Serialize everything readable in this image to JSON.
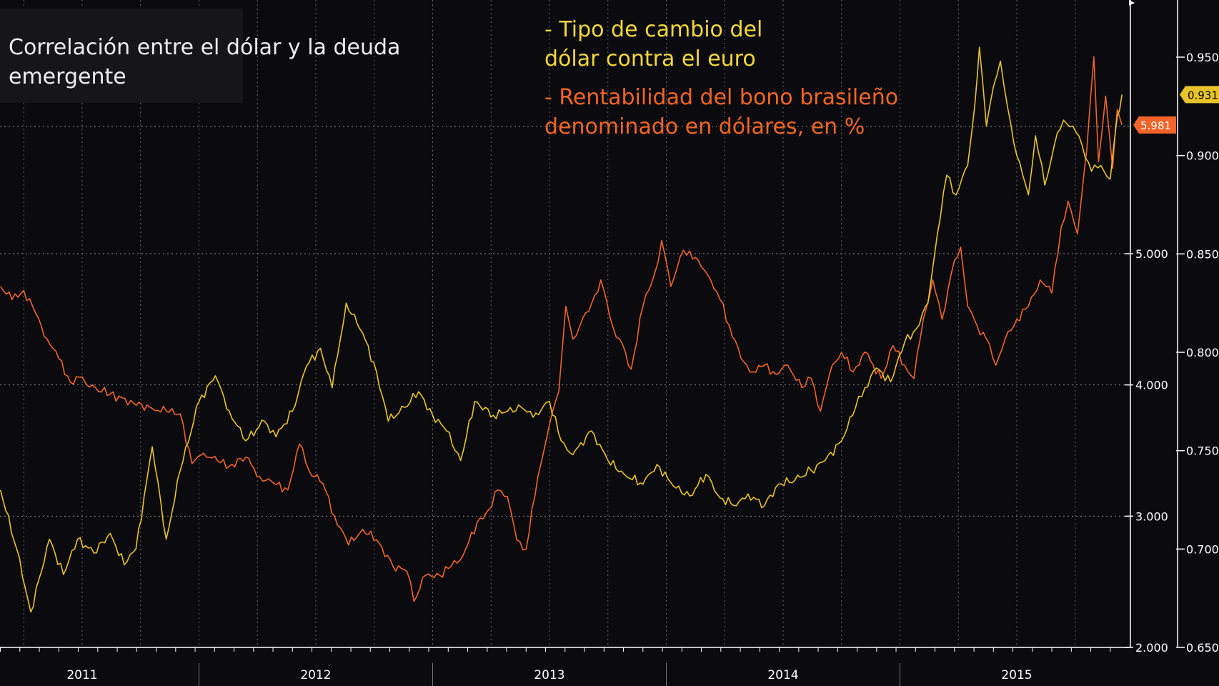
{
  "title": "Correlación entre el dólar y la deuda emergente",
  "legend": {
    "usd_line1": "- Tipo de cambio del",
    "usd_line2": "dólar contra el euro",
    "bond_line1": "- Rentabilidad del bono brasileño",
    "bond_line2": "denominado en dólares, en %"
  },
  "colors": {
    "background": "#0b0b0f",
    "usd": "#e8c42a",
    "bond": "#f2632a",
    "grid": "#8a8a8a",
    "text": "#ffffff"
  },
  "chart_data": {
    "type": "line",
    "title": "Correlación entre el dólar y la deuda emergente",
    "x_labels": [
      "2011",
      "2012",
      "2013",
      "2014",
      "2015"
    ],
    "x_range": [
      2010.65,
      2015.45
    ],
    "axes": {
      "eurusd": {
        "side": "outer-right",
        "ylim": [
          0.65,
          0.975
        ],
        "ticks": [
          "0.650",
          "0.700",
          "0.750",
          "0.800",
          "0.850",
          "0.900",
          "0.950"
        ]
      },
      "bond_yield": {
        "side": "inner-right",
        "ylim": [
          2.0,
          7.0
        ],
        "ticks": [
          "2.000",
          "3.000",
          "4.000",
          "5.000"
        ]
      }
    },
    "series": [
      {
        "name": "Tipo de cambio del dólar contra el euro",
        "axis": "eurusd",
        "last_value": "0.931",
        "points": [
          [
            2010.65,
            0.73
          ],
          [
            2010.72,
            0.7
          ],
          [
            2010.78,
            0.668
          ],
          [
            2010.86,
            0.705
          ],
          [
            2010.92,
            0.687
          ],
          [
            2010.98,
            0.705
          ],
          [
            2011.05,
            0.698
          ],
          [
            2011.12,
            0.708
          ],
          [
            2011.18,
            0.692
          ],
          [
            2011.23,
            0.7
          ],
          [
            2011.3,
            0.752
          ],
          [
            2011.36,
            0.705
          ],
          [
            2011.42,
            0.74
          ],
          [
            2011.5,
            0.775
          ],
          [
            2011.57,
            0.788
          ],
          [
            2011.63,
            0.77
          ],
          [
            2011.7,
            0.755
          ],
          [
            2011.78,
            0.765
          ],
          [
            2011.83,
            0.757
          ],
          [
            2011.9,
            0.77
          ],
          [
            2011.96,
            0.793
          ],
          [
            2012.02,
            0.802
          ],
          [
            2012.07,
            0.782
          ],
          [
            2012.13,
            0.825
          ],
          [
            2012.2,
            0.81
          ],
          [
            2012.26,
            0.79
          ],
          [
            2012.31,
            0.765
          ],
          [
            2012.38,
            0.772
          ],
          [
            2012.44,
            0.78
          ],
          [
            2012.5,
            0.768
          ],
          [
            2012.56,
            0.76
          ],
          [
            2012.62,
            0.745
          ],
          [
            2012.68,
            0.775
          ],
          [
            2012.76,
            0.768
          ],
          [
            2012.82,
            0.77
          ],
          [
            2012.88,
            0.772
          ],
          [
            2012.93,
            0.767
          ],
          [
            2013.0,
            0.775
          ],
          [
            2013.05,
            0.755
          ],
          [
            2013.1,
            0.748
          ],
          [
            2013.18,
            0.76
          ],
          [
            2013.25,
            0.745
          ],
          [
            2013.32,
            0.738
          ],
          [
            2013.4,
            0.733
          ],
          [
            2013.46,
            0.743
          ],
          [
            2013.53,
            0.732
          ],
          [
            2013.6,
            0.727
          ],
          [
            2013.67,
            0.738
          ],
          [
            2013.73,
            0.726
          ],
          [
            2013.8,
            0.722
          ],
          [
            2013.85,
            0.728
          ],
          [
            2013.92,
            0.722
          ],
          [
            2013.98,
            0.733
          ],
          [
            2014.05,
            0.735
          ],
          [
            2014.12,
            0.74
          ],
          [
            2014.18,
            0.745
          ],
          [
            2014.25,
            0.755
          ],
          [
            2014.31,
            0.772
          ],
          [
            2014.35,
            0.782
          ],
          [
            2014.4,
            0.792
          ],
          [
            2014.46,
            0.785
          ],
          [
            2014.52,
            0.805
          ],
          [
            2014.57,
            0.812
          ],
          [
            2014.62,
            0.825
          ],
          [
            2014.66,
            0.86
          ],
          [
            2014.7,
            0.89
          ],
          [
            2014.74,
            0.88
          ],
          [
            2014.79,
            0.895
          ],
          [
            2014.82,
            0.925
          ],
          [
            2014.84,
            0.955
          ],
          [
            2014.87,
            0.915
          ],
          [
            2014.9,
            0.935
          ],
          [
            2014.93,
            0.948
          ],
          [
            2014.96,
            0.925
          ],
          [
            2015.0,
            0.9
          ],
          [
            2015.05,
            0.88
          ],
          [
            2015.08,
            0.91
          ],
          [
            2015.12,
            0.885
          ],
          [
            2015.16,
            0.905
          ],
          [
            2015.2,
            0.918
          ],
          [
            2015.24,
            0.915
          ],
          [
            2015.28,
            0.905
          ],
          [
            2015.32,
            0.892
          ],
          [
            2015.36,
            0.895
          ],
          [
            2015.4,
            0.888
          ],
          [
            2015.43,
            0.92
          ],
          [
            2015.45,
            0.931
          ]
        ]
      },
      {
        "name": "Rentabilidad del bono brasileño denominado en dólares, en %",
        "axis": "bond_yield",
        "last_value": "5.981",
        "points": [
          [
            2010.65,
            4.75
          ],
          [
            2010.7,
            4.65
          ],
          [
            2010.75,
            4.72
          ],
          [
            2010.8,
            4.55
          ],
          [
            2010.85,
            4.35
          ],
          [
            2010.9,
            4.2
          ],
          [
            2010.95,
            4.02
          ],
          [
            2011.0,
            4.06
          ],
          [
            2011.02,
            4.0
          ],
          [
            2011.12,
            3.93
          ],
          [
            2011.22,
            3.86
          ],
          [
            2011.3,
            3.82
          ],
          [
            2011.36,
            3.8
          ],
          [
            2011.42,
            3.78
          ],
          [
            2011.47,
            3.4
          ],
          [
            2011.52,
            3.48
          ],
          [
            2011.58,
            3.42
          ],
          [
            2011.63,
            3.38
          ],
          [
            2011.7,
            3.45
          ],
          [
            2011.76,
            3.3
          ],
          [
            2011.82,
            3.25
          ],
          [
            2011.88,
            3.2
          ],
          [
            2011.93,
            3.55
          ],
          [
            2011.97,
            3.35
          ],
          [
            2012.03,
            3.25
          ],
          [
            2012.08,
            3.0
          ],
          [
            2012.14,
            2.78
          ],
          [
            2012.2,
            2.9
          ],
          [
            2012.26,
            2.82
          ],
          [
            2012.33,
            2.62
          ],
          [
            2012.39,
            2.58
          ],
          [
            2012.42,
            2.35
          ],
          [
            2012.47,
            2.55
          ],
          [
            2012.53,
            2.55
          ],
          [
            2012.58,
            2.62
          ],
          [
            2012.63,
            2.7
          ],
          [
            2012.69,
            2.95
          ],
          [
            2012.74,
            3.05
          ],
          [
            2012.78,
            3.2
          ],
          [
            2012.82,
            3.15
          ],
          [
            2012.86,
            2.82
          ],
          [
            2012.9,
            2.75
          ],
          [
            2012.95,
            3.3
          ],
          [
            2013.0,
            3.7
          ],
          [
            2013.04,
            3.95
          ],
          [
            2013.07,
            4.6
          ],
          [
            2013.1,
            4.35
          ],
          [
            2013.13,
            4.45
          ],
          [
            2013.18,
            4.62
          ],
          [
            2013.22,
            4.8
          ],
          [
            2013.27,
            4.45
          ],
          [
            2013.3,
            4.35
          ],
          [
            2013.35,
            4.12
          ],
          [
            2013.4,
            4.6
          ],
          [
            2013.45,
            4.85
          ],
          [
            2013.48,
            5.1
          ],
          [
            2013.52,
            4.75
          ],
          [
            2013.56,
            4.98
          ],
          [
            2013.6,
            5.02
          ],
          [
            2013.65,
            4.9
          ],
          [
            2013.69,
            4.8
          ],
          [
            2013.73,
            4.65
          ],
          [
            2013.77,
            4.45
          ],
          [
            2013.82,
            4.2
          ],
          [
            2013.87,
            4.1
          ],
          [
            2013.92,
            4.15
          ],
          [
            2013.97,
            4.08
          ],
          [
            2014.02,
            4.15
          ],
          [
            2014.08,
            3.98
          ],
          [
            2014.12,
            4.05
          ],
          [
            2014.16,
            3.8
          ],
          [
            2014.21,
            4.15
          ],
          [
            2014.25,
            4.25
          ],
          [
            2014.3,
            4.1
          ],
          [
            2014.35,
            4.25
          ],
          [
            2014.42,
            4.05
          ],
          [
            2014.47,
            4.3
          ],
          [
            2014.52,
            4.15
          ],
          [
            2014.56,
            4.05
          ],
          [
            2014.6,
            4.5
          ],
          [
            2014.64,
            4.8
          ],
          [
            2014.68,
            4.5
          ],
          [
            2014.72,
            4.85
          ],
          [
            2014.76,
            5.05
          ],
          [
            2014.79,
            4.6
          ],
          [
            2014.83,
            4.45
          ],
          [
            2014.87,
            4.35
          ],
          [
            2014.91,
            4.15
          ],
          [
            2014.95,
            4.35
          ],
          [
            2015.0,
            4.5
          ],
          [
            2015.05,
            4.6
          ],
          [
            2015.1,
            4.8
          ],
          [
            2015.15,
            4.7
          ],
          [
            2015.19,
            5.2
          ],
          [
            2015.22,
            5.4
          ],
          [
            2015.26,
            5.15
          ],
          [
            2015.3,
            5.8
          ],
          [
            2015.33,
            6.5
          ],
          [
            2015.35,
            5.7
          ],
          [
            2015.38,
            6.2
          ],
          [
            2015.41,
            5.65
          ],
          [
            2015.43,
            6.1
          ],
          [
            2015.45,
            5.981
          ]
        ]
      }
    ]
  }
}
